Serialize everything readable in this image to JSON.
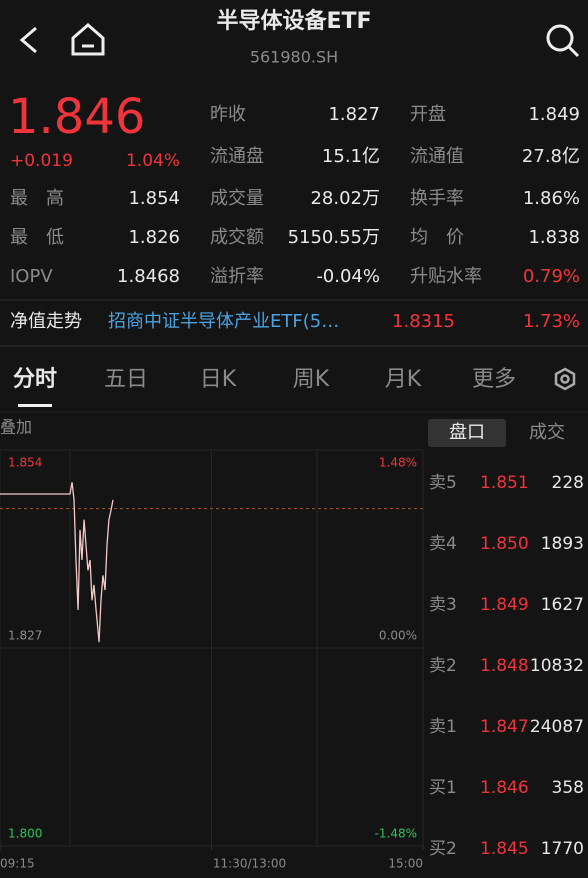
{
  "header": {
    "title": "半导体设备ETF",
    "code": "561980.SH"
  },
  "quote": {
    "price": 1.846,
    "change": "+0.019",
    "change_pct": "1.04%"
  },
  "stats": [
    [
      {
        "label": "最　高",
        "value": "1.854"
      },
      {
        "label": "最　低",
        "value": "1.826"
      },
      {
        "label": "IOPV",
        "value": "1.8468"
      }
    ],
    [
      {
        "label": "昨收",
        "value": "1.827"
      },
      {
        "label": "流通盘",
        "value": "15.1亿"
      },
      {
        "label": "成交量",
        "value": "28.02万"
      },
      {
        "label": "成交额",
        "value": "5150.55万"
      },
      {
        "label": "溢折率",
        "value": "-0.04%"
      }
    ],
    [
      {
        "label": "开盘",
        "value": "1.849"
      },
      {
        "label": "流通值",
        "value": "27.8亿"
      },
      {
        "label": "换手率",
        "value": "1.86%"
      },
      {
        "label": "均　价",
        "value": "1.838"
      },
      {
        "label": "升贴水率",
        "value": "0.79%"
      }
    ]
  ],
  "nav": {
    "label": "净值走势",
    "name": "招商中证半导体产业ETF(5…",
    "value": "1.8315",
    "pct": "1.73%"
  },
  "tabs": [
    "分时",
    "五日",
    "日K",
    "周K",
    "月K",
    "更多"
  ],
  "overlay": "叠加",
  "chart_data": {
    "type": "line",
    "x": [
      0,
      39.7,
      40.9,
      42.0,
      43.1,
      44.3,
      45.4,
      46.5,
      47.7,
      48.8,
      49.9,
      51.1,
      52.2,
      53.3,
      54.5,
      55.6,
      56.2,
      57.3,
      58.4,
      59.6,
      60.7,
      61.8,
      63.0,
      64.1
    ],
    "values": [
      1.848,
      1.848,
      1.8496,
      1.8472,
      1.839,
      1.8322,
      1.8431,
      1.839,
      1.8445,
      1.841,
      1.8376,
      1.839,
      1.8335,
      1.8356,
      1.8322,
      1.8294,
      1.8278,
      1.8335,
      1.8369,
      1.8349,
      1.841,
      1.8445,
      1.8458,
      1.8472
    ],
    "color": "#f5c8c8",
    "xlim": [
      0,
      240
    ],
    "xticks": [
      {
        "value": 0,
        "label": "09:15"
      },
      {
        "value": 120,
        "label": "11:30/13:00"
      },
      {
        "value": 240,
        "label": "15:00"
      }
    ],
    "ylim": [
      1.8,
      1.854
    ],
    "yticks": [
      1.854,
      1.827,
      {
        "value": 1.8,
        "label": "1.800"
      }
    ],
    "y2lim": [
      -1.48,
      1.48
    ],
    "y2ticks": [
      {
        "value": 1.48,
        "label": "1.48%"
      },
      {
        "value": 0,
        "label": "0.00%"
      },
      {
        "value": -1.48,
        "label": "-1.48%"
      }
    ]
  },
  "order_book": {
    "tabs": [
      "盘口",
      "成交"
    ],
    "rows": [
      {
        "label": "卖5",
        "price": "1.851",
        "volume": "228"
      },
      {
        "label": "卖4",
        "price": "1.850",
        "volume": "1893"
      },
      {
        "label": "卖3",
        "price": "1.849",
        "volume": "1627"
      },
      {
        "label": "卖2",
        "price": "1.848",
        "volume": "10832"
      },
      {
        "label": "卖1",
        "price": "1.847",
        "volume": "24087"
      },
      {
        "label": "买1",
        "price": "1.846",
        "volume": "358"
      },
      {
        "label": "买2",
        "price": "1.845",
        "volume": "1770"
      }
    ]
  }
}
